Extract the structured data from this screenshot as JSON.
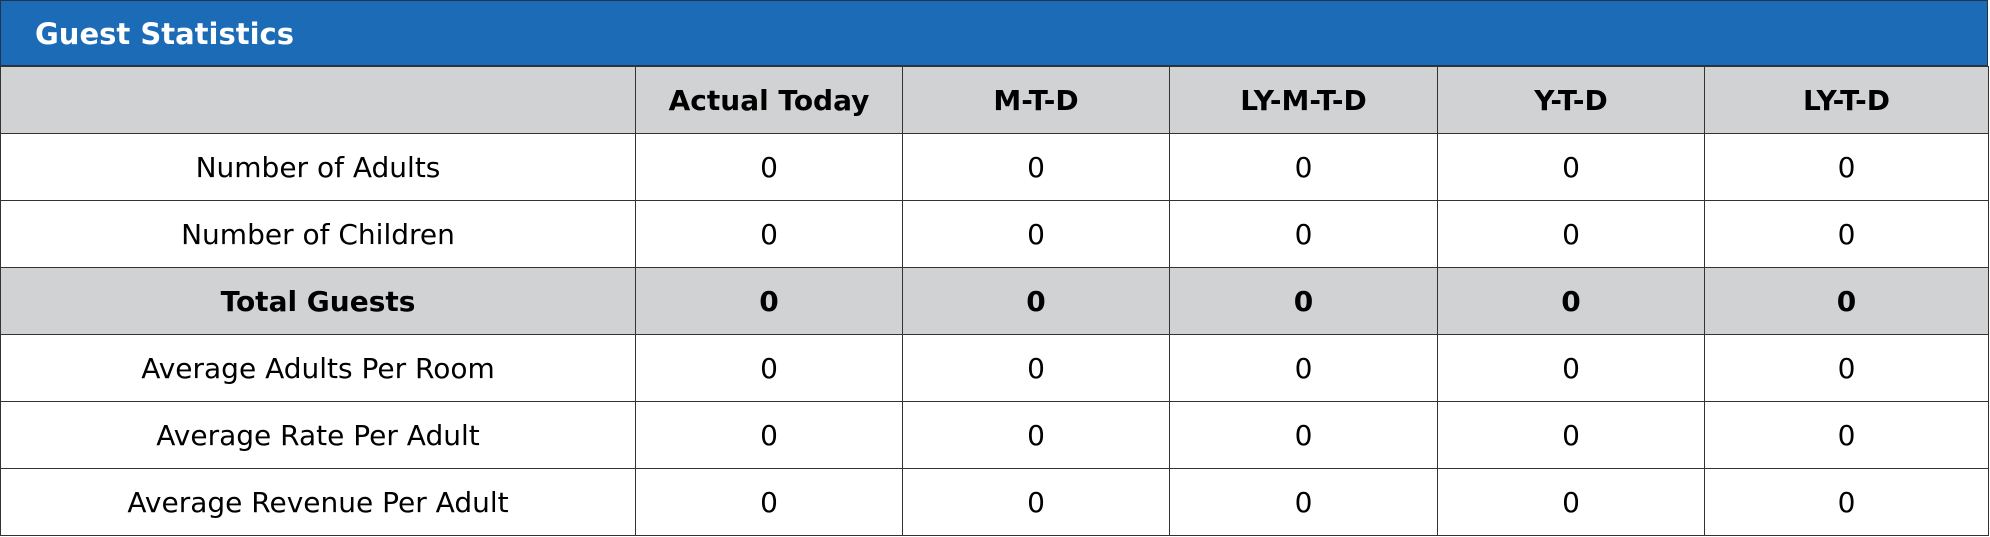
{
  "title": "Guest Statistics",
  "table": {
    "columns": [
      "Actual Today",
      "M-T-D",
      "LY-M-T-D",
      "Y-T-D",
      "LY-T-D"
    ],
    "rows": [
      [
        "Number of Adults",
        0,
        0,
        0,
        0,
        0
      ],
      [
        "Number of Children",
        0,
        0,
        0,
        0,
        0
      ],
      [
        "Total Guests",
        0,
        0,
        0,
        0,
        0
      ],
      [
        "Average Adults Per Room",
        0,
        0,
        0,
        0,
        0
      ],
      [
        "Average Rate Per Adult",
        0,
        0,
        0,
        0,
        0
      ],
      [
        "Average Revenue Per Adult",
        0,
        0,
        0,
        0,
        0
      ]
    ]
  }
}
